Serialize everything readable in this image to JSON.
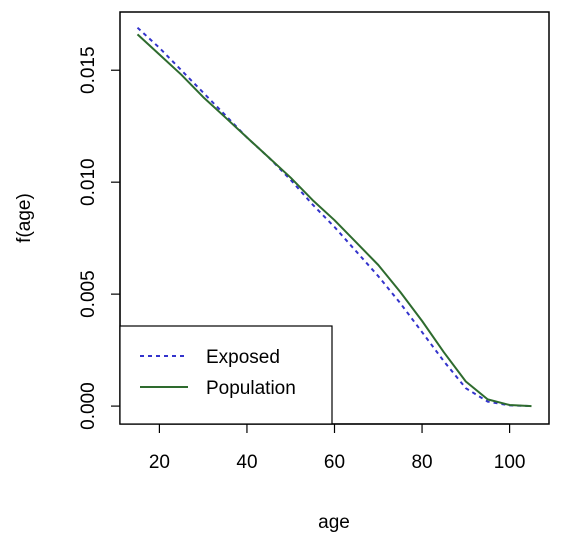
{
  "chart_data": {
    "type": "line",
    "xlabel": "age",
    "ylabel": "f(age)",
    "xlim": [
      11,
      109
    ],
    "ylim": [
      -0.0008,
      0.0176
    ],
    "xticks": [
      {
        "value": 20,
        "label": "20"
      },
      {
        "value": 40,
        "label": "40"
      },
      {
        "value": 60,
        "label": "60"
      },
      {
        "value": 80,
        "label": "80"
      },
      {
        "value": 100,
        "label": "100"
      }
    ],
    "yticks": [
      {
        "value": 0.0,
        "label": "0.000"
      },
      {
        "value": 0.005,
        "label": "0.005"
      },
      {
        "value": 0.01,
        "label": "0.010"
      },
      {
        "value": 0.015,
        "label": "0.015"
      }
    ],
    "grid": false,
    "legend_position": "bottom-left",
    "series": [
      {
        "name": "Exposed",
        "color": "#3333cc",
        "line_style": "dotted",
        "x": [
          15,
          20,
          25,
          30,
          35,
          40,
          45,
          50,
          55,
          60,
          65,
          70,
          75,
          80,
          85,
          90,
          95,
          100,
          105
        ],
        "y": [
          0.0169,
          0.016,
          0.015,
          0.014,
          0.013,
          0.012,
          0.0111,
          0.0101,
          0.009,
          0.008,
          0.0069,
          0.0058,
          0.0046,
          0.0033,
          0.002,
          0.0008,
          0.0002,
          3e-05,
          0.0
        ]
      },
      {
        "name": "Population",
        "color": "#2e6b2e",
        "line_style": "solid",
        "x": [
          15,
          20,
          25,
          30,
          35,
          40,
          45,
          50,
          55,
          60,
          65,
          70,
          75,
          80,
          85,
          90,
          95,
          100,
          105
        ],
        "y": [
          0.0166,
          0.0157,
          0.0148,
          0.0138,
          0.0129,
          0.012,
          0.0111,
          0.0102,
          0.0092,
          0.0083,
          0.0073,
          0.0063,
          0.0051,
          0.0038,
          0.0024,
          0.0011,
          0.0003,
          5e-05,
          0.0
        ]
      }
    ]
  }
}
